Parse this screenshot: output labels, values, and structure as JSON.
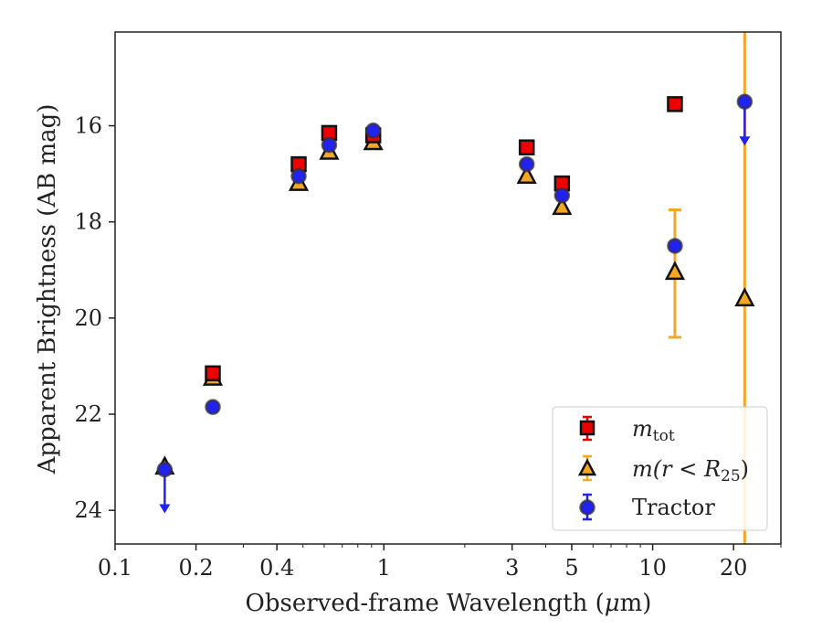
{
  "chart_data": {
    "type": "scatter",
    "xlabel_main": "Observed-frame Wavelength (",
    "xlabel_mu": "μ",
    "xlabel_end": "m)",
    "ylabel": "Apparent Brightness (AB mag)",
    "xscale": "log",
    "yaxis_inverted": true,
    "xlim": [
      0.1,
      30
    ],
    "ylim": [
      24.7,
      14.05
    ],
    "x_ticks": [
      0.1,
      0.2,
      0.4,
      1,
      3,
      5,
      10,
      20
    ],
    "x_tick_labels": [
      "0.1",
      "0.2",
      "0.4",
      "1",
      "3",
      "5",
      "10",
      "20"
    ],
    "y_ticks": [
      16,
      18,
      20,
      22,
      24
    ],
    "y_tick_labels": [
      "16",
      "18",
      "20",
      "22",
      "24"
    ],
    "grid": false,
    "legend_position": "bottom-right",
    "series": [
      {
        "name": "m_tot",
        "legend": {
          "base": "m",
          "sub": "tot"
        },
        "marker": "square",
        "color": "#ee0000",
        "points": [
          {
            "x": 0.231,
            "y": 21.15
          },
          {
            "x": 0.482,
            "y": 16.8
          },
          {
            "x": 0.626,
            "y": 16.15
          },
          {
            "x": 0.913,
            "y": 16.2
          },
          {
            "x": 3.4,
            "y": 16.45
          },
          {
            "x": 4.6,
            "y": 17.2
          },
          {
            "x": 12.1,
            "y": 15.55
          }
        ]
      },
      {
        "name": "m(r < R25)",
        "legend": {
          "base": "m(r < R",
          "sub": "25",
          "end": ")"
        },
        "marker": "triangle",
        "color": "#f5a623",
        "points": [
          {
            "x": 0.153,
            "y": 23.1
          },
          {
            "x": 0.231,
            "y": 21.25
          },
          {
            "x": 0.482,
            "y": 17.2
          },
          {
            "x": 0.626,
            "y": 16.55
          },
          {
            "x": 0.913,
            "y": 16.35
          },
          {
            "x": 3.4,
            "y": 17.05
          },
          {
            "x": 4.6,
            "y": 17.7
          },
          {
            "x": 12.1,
            "y": 19.05,
            "err_low": 17.75,
            "err_high": 20.4
          },
          {
            "x": 22,
            "y": 19.6,
            "err_low": 14.05,
            "err_high": 24.7
          }
        ]
      },
      {
        "name": "Tractor",
        "legend": {
          "base": "Tractor"
        },
        "marker": "circle",
        "color": "#2222ee",
        "points": [
          {
            "x": 0.153,
            "y": 23.15,
            "upper_limit": true
          },
          {
            "x": 0.231,
            "y": 21.85
          },
          {
            "x": 0.482,
            "y": 17.05
          },
          {
            "x": 0.626,
            "y": 16.4
          },
          {
            "x": 0.913,
            "y": 16.1
          },
          {
            "x": 3.4,
            "y": 16.8
          },
          {
            "x": 4.6,
            "y": 17.45
          },
          {
            "x": 12.1,
            "y": 18.5
          },
          {
            "x": 22,
            "y": 15.5,
            "upper_limit": true
          }
        ]
      }
    ]
  }
}
